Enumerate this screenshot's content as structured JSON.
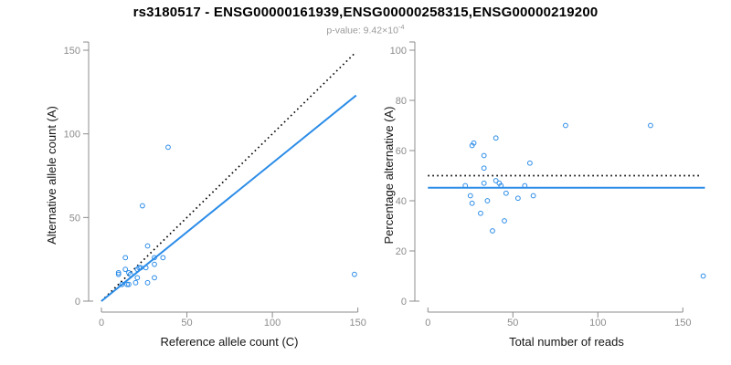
{
  "header": {
    "title": "rs3180517 - ENSG00000161939,ENSG00000258315,ENSG00000219200",
    "pvalue_prefix": "p-value: 9.42×10",
    "pvalue_exponent": "-4"
  },
  "colors": {
    "accent_blue": "#2b8ce8",
    "axis_gray": "#8c8c8c",
    "tick_label_gray": "#8c8c8c",
    "text_black": "#141414",
    "subtitle_gray": "#9a9a9a",
    "dotted_line_black": "#000000"
  },
  "chart_data": [
    {
      "type": "scatter",
      "title": "",
      "xlabel": "Reference allele count (C)",
      "ylabel": "Alternative allele count (A)",
      "xticks": [
        0,
        50,
        100,
        150
      ],
      "yticks": [
        0,
        50,
        100,
        150
      ],
      "xlim": [
        0,
        157
      ],
      "ylim": [
        0,
        150
      ],
      "grid": false,
      "marker": "open-circle",
      "points": [
        [
          39,
          92
        ],
        [
          24,
          57
        ],
        [
          27,
          33
        ],
        [
          14,
          26
        ],
        [
          31,
          26
        ],
        [
          36,
          26
        ],
        [
          14,
          19
        ],
        [
          21,
          19
        ],
        [
          22,
          20
        ],
        [
          23,
          20
        ],
        [
          10,
          17
        ],
        [
          10,
          16
        ],
        [
          16,
          17
        ],
        [
          17,
          16
        ],
        [
          26,
          20
        ],
        [
          15,
          10
        ],
        [
          21,
          14
        ],
        [
          31,
          22
        ],
        [
          16,
          10
        ],
        [
          20,
          11
        ],
        [
          31,
          14
        ],
        [
          27,
          11
        ],
        [
          12,
          10
        ],
        [
          148,
          16
        ]
      ],
      "lines": [
        {
          "name": "identity-line",
          "style": "dotted",
          "color": "#000000",
          "from": [
            0,
            0
          ],
          "to": [
            148,
            148
          ]
        },
        {
          "name": "fit-line",
          "style": "solid",
          "color": "#2b8ce8",
          "from": [
            0,
            0
          ],
          "to": [
            149,
            123
          ]
        }
      ]
    },
    {
      "type": "scatter",
      "title": "",
      "xlabel": "Total number of reads",
      "ylabel": "Percentage alternative (A)",
      "xticks": [
        0,
        50,
        100,
        150
      ],
      "yticks": [
        0,
        20,
        40,
        60,
        80,
        100
      ],
      "xlim": [
        0,
        163
      ],
      "ylim": [
        0,
        100
      ],
      "grid": false,
      "marker": "open-circle",
      "points": [
        [
          131,
          70
        ],
        [
          81,
          70
        ],
        [
          60,
          55
        ],
        [
          40,
          65
        ],
        [
          57,
          46
        ],
        [
          62,
          42
        ],
        [
          33,
          58
        ],
        [
          40,
          48
        ],
        [
          42,
          47
        ],
        [
          43,
          46
        ],
        [
          27,
          63
        ],
        [
          26,
          62
        ],
        [
          33,
          53
        ],
        [
          33,
          47
        ],
        [
          46,
          43
        ],
        [
          25,
          42
        ],
        [
          35,
          40
        ],
        [
          53,
          41
        ],
        [
          26,
          39
        ],
        [
          31,
          35
        ],
        [
          45,
          32
        ],
        [
          38,
          28
        ],
        [
          22,
          46
        ],
        [
          162,
          10
        ]
      ],
      "lines": [
        {
          "name": "expected-50pct-line",
          "style": "dotted",
          "color": "#000000",
          "from": [
            0,
            50
          ],
          "to": [
            161,
            50
          ]
        },
        {
          "name": "mean-pct-line",
          "style": "solid",
          "color": "#2b8ce8",
          "from": [
            0,
            45.2
          ],
          "to": [
            163,
            45.2
          ]
        }
      ]
    }
  ]
}
